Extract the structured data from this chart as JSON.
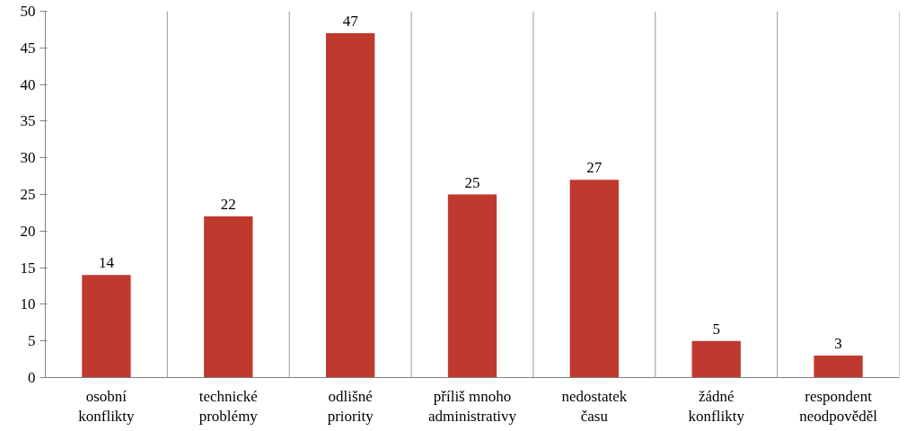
{
  "chart_data": {
    "type": "bar",
    "categories": [
      "osobní konflikty",
      "technické problémy",
      "odlišné priority",
      "příliš mnoho administrativy",
      "nedostatek času",
      "žádné konflikty",
      "respondent neodpověděl"
    ],
    "values": [
      14,
      22,
      47,
      25,
      27,
      5,
      3
    ],
    "color": "#c0392f",
    "ylim": [
      0,
      50
    ],
    "yticks": [
      0,
      5,
      10,
      15,
      20,
      25,
      30,
      35,
      40,
      45,
      50
    ],
    "grid": "x",
    "data_labels": true
  }
}
